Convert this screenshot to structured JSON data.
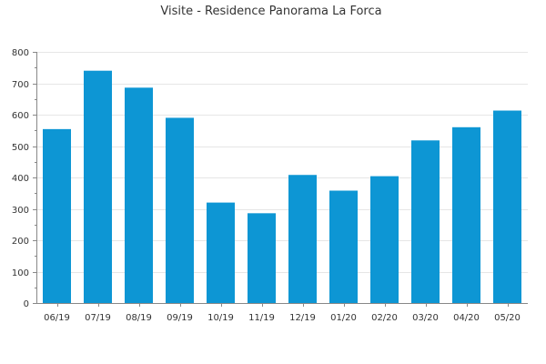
{
  "chart_data": {
    "type": "bar",
    "title": "Visite - Residence Panorama La Forca",
    "categories": [
      "06/19",
      "07/19",
      "08/19",
      "09/19",
      "10/19",
      "11/19",
      "12/19",
      "01/20",
      "02/20",
      "03/20",
      "04/20",
      "05/20"
    ],
    "values": [
      554,
      740,
      686,
      590,
      320,
      286,
      408,
      358,
      404,
      518,
      560,
      613
    ],
    "xlabel": "",
    "ylabel": "",
    "ylim": [
      0,
      800
    ],
    "yticks": [
      0,
      100,
      200,
      300,
      400,
      500,
      600,
      700,
      800
    ],
    "grid": true,
    "bar_color": "#0d96d4"
  }
}
